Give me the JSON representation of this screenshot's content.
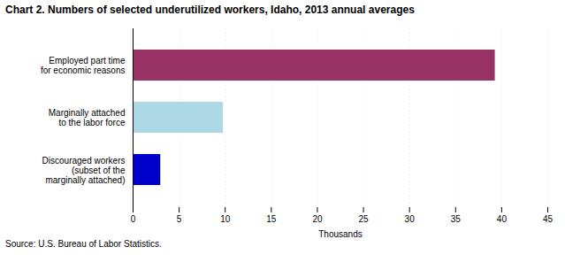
{
  "chart_data": {
    "type": "bar",
    "orientation": "horizontal",
    "title": "Chart 2.  Numbers of selected underutilized workers, Idaho, 2013  annual averages",
    "categories": [
      "Discouraged workers\n(subset of the\nmarginally attached)",
      "Marginally attached\nto the labor force",
      "Employed part time\nfor economic reasons"
    ],
    "values": [
      3.0,
      9.8,
      39.3
    ],
    "colors": [
      "#0000cc",
      "#add8e6",
      "#993366"
    ],
    "xlim": [
      0,
      45
    ],
    "xticks": [
      0,
      5,
      10,
      15,
      20,
      25,
      30,
      35,
      40,
      45
    ],
    "xlabel": "Thousands",
    "grid": true,
    "source": "Source: U.S. Bureau of Labor Statistics."
  }
}
